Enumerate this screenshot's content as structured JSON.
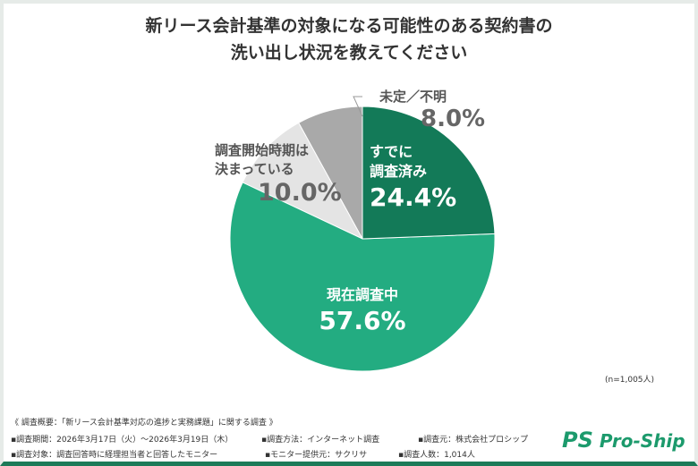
{
  "title_lines": [
    "新リース会計基準の対象になる可能性のある契約書の",
    "洗い出し状況を教えてください"
  ],
  "chart_data": {
    "type": "pie",
    "title": "新リース会計基準の対象になる可能性のある契約書の洗い出し状況を教えてください",
    "slices": [
      {
        "label": "すでに調査済み",
        "label_lines": [
          "すでに",
          "調査済み"
        ],
        "value": 24.4,
        "value_label": "24.4%",
        "color": "#137a58"
      },
      {
        "label": "現在調査中",
        "label_lines": [
          "現在調査中"
        ],
        "value": 57.6,
        "value_label": "57.6%",
        "color": "#23ac81"
      },
      {
        "label": "調査開始時期は決まっている",
        "label_lines": [
          "調査開始時期は",
          "決まっている"
        ],
        "value": 10.0,
        "value_label": "10.0%",
        "color": "#e4e4e4"
      },
      {
        "label": "未定／不明",
        "label_lines": [
          "未定／不明"
        ],
        "value": 8.0,
        "value_label": "8.0%",
        "color": "#a9a9a9"
      }
    ],
    "note": "(n=1,005人)"
  },
  "footer": {
    "summary": "《 調査概要：「新リース会計基準対応の進捗と実務課題」に関する調査 》",
    "items": [
      "▪調査期間：2026年3月17日（火）〜2026年3月19日（木）",
      "▪調査方法：インターネット調査",
      "▪調査元：株式会社プロシップ",
      "▪調査対象：調査回答時に経理担当者と回答したモニター",
      "▪モニター提供元：サクリサ",
      "▪調査人数：1,014人"
    ]
  },
  "logo": "Pro-Ship"
}
